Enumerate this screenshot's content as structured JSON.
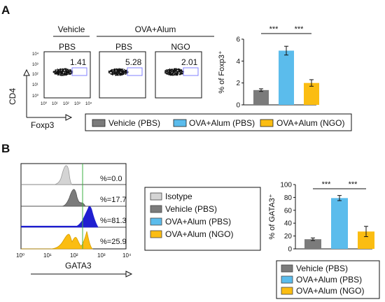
{
  "panel_a": {
    "label": "A",
    "flow": {
      "group_labels": [
        "Vehicle",
        "OVA+Alum"
      ],
      "plot_labels": [
        "PBS",
        "PBS",
        "NGO"
      ],
      "percentages": [
        "1.41",
        "5.28",
        "2.01"
      ],
      "y_axis_label": "CD4",
      "x_axis_label": "Foxp3",
      "y_ticks": [
        "10⁴",
        "10³",
        "10²",
        "10¹",
        "10⁰"
      ],
      "x_ticks": [
        "10⁰",
        "10¹",
        "10²",
        "10³",
        "10⁴"
      ]
    },
    "legend": [
      "Vehicle (PBS)",
      "OVA+Alum (PBS)",
      "OVA+Alum (NGO)"
    ]
  },
  "panel_b": {
    "label": "B",
    "histogram": {
      "x_axis_label": "GATA3",
      "x_ticks": [
        "10⁰",
        "10¹",
        "10²",
        "10³",
        "10⁴"
      ],
      "percentages": [
        "%=0.0",
        "%=17.7",
        "%=81.3",
        "%=25.9"
      ]
    },
    "legend": [
      "Isotype",
      "Vehicle (PBS)",
      "OVA+Alum (PBS)",
      "OVA+Alum (NGO)"
    ],
    "bar_legend": [
      "Vehicle (PBS)",
      "OVA+Alum (PBS)",
      "OVA+Alum (NGO)"
    ]
  },
  "colors": {
    "isotype": "#d4d4d4",
    "vehicle": "#7b7b7b",
    "ova_pbs": "#5bbcec",
    "ova_ngo": "#fbbd12",
    "blue_line": "#1f1fd0",
    "gate": "#8080ff",
    "green_line": "#3cb043"
  },
  "chart_data": [
    {
      "type": "bar",
      "categories": [
        "Vehicle (PBS)",
        "OVA+Alum (PBS)",
        "OVA+Alum (NGO)"
      ],
      "values": [
        1.35,
        4.95,
        2.0
      ],
      "errors": [
        0.12,
        0.4,
        0.3
      ],
      "ylabel": "% of Foxp3⁺",
      "ylim": [
        0,
        6
      ],
      "yticks": [
        "0",
        "2",
        "4",
        "6"
      ],
      "significance": [
        "***",
        "***"
      ]
    },
    {
      "type": "bar",
      "categories": [
        "Vehicle (PBS)",
        "OVA+Alum (PBS)",
        "OVA+Alum (NGO)"
      ],
      "values": [
        15,
        79,
        27
      ],
      "errors": [
        2,
        4,
        8
      ],
      "ylabel": "% of GATA3⁺",
      "ylim": [
        0,
        100
      ],
      "yticks": [
        "0",
        "20",
        "40",
        "60",
        "80",
        "100"
      ],
      "significance": [
        "***",
        "***"
      ]
    }
  ]
}
